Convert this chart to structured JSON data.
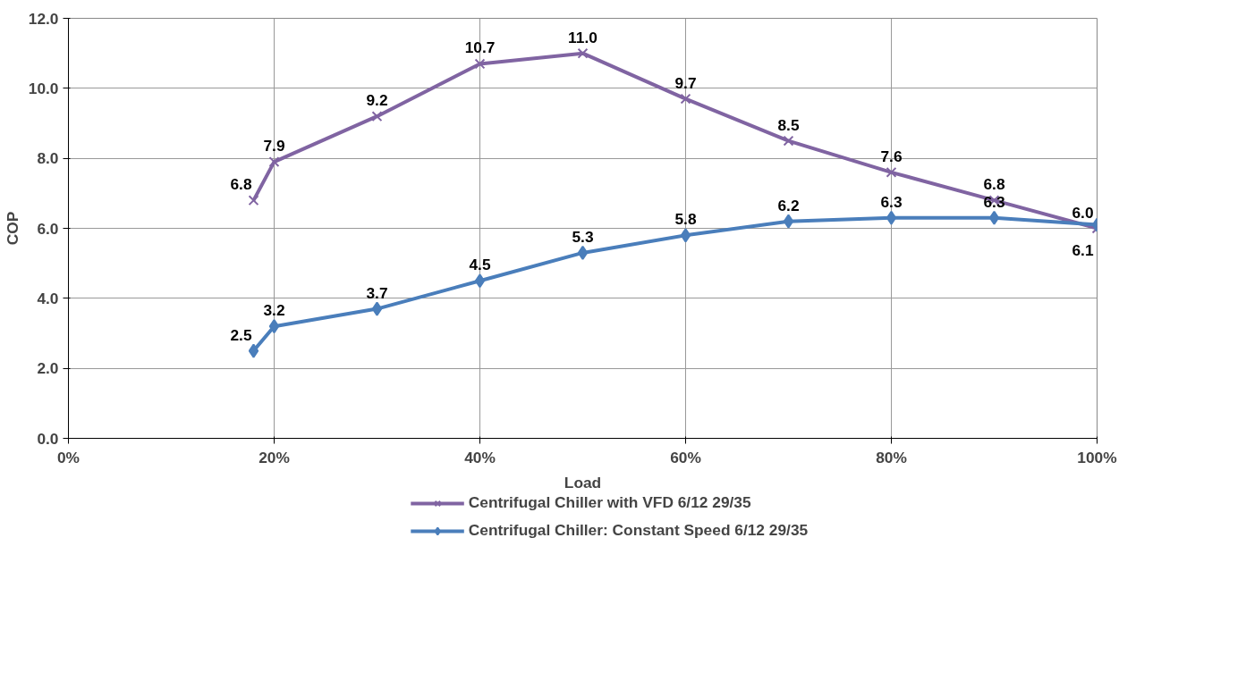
{
  "chart_data": {
    "type": "line",
    "xlabel": "Load",
    "ylabel": "COP",
    "x": [
      0.18,
      0.2,
      0.3,
      0.4,
      0.5,
      0.6,
      0.7,
      0.8,
      0.9,
      1.0
    ],
    "series": [
      {
        "name": "Centrifugal Chiller with VFD 6/12 29/35",
        "color": "#8064a2",
        "marker": "cross",
        "values": [
          6.8,
          7.9,
          9.2,
          10.7,
          11.0,
          9.7,
          8.5,
          7.6,
          6.8,
          6.0
        ],
        "value_labels": [
          "6.8",
          "7.9",
          "9.2",
          "10.7",
          "11.0",
          "9.7",
          "8.5",
          "7.6",
          "6.8",
          "6.0"
        ]
      },
      {
        "name": "Centrifugal Chiller: Constant Speed 6/12 29/35",
        "color": "#4a7ebb",
        "marker": "diamond",
        "values": [
          2.5,
          3.2,
          3.7,
          4.5,
          5.3,
          5.8,
          6.2,
          6.3,
          6.3,
          6.1
        ],
        "value_labels": [
          "2.5",
          "3.2",
          "3.7",
          "4.5",
          "5.3",
          "5.8",
          "6.2",
          "6.3",
          "6.3",
          "6.1"
        ]
      }
    ],
    "xlim": [
      0,
      1
    ],
    "xticks": [
      {
        "value": 0,
        "label": "0%"
      },
      {
        "value": 0.2,
        "label": "20%"
      },
      {
        "value": 0.4,
        "label": "40%"
      },
      {
        "value": 0.6,
        "label": "60%"
      },
      {
        "value": 0.8,
        "label": "80%"
      },
      {
        "value": 1.0,
        "label": "100%"
      }
    ],
    "ylim": [
      0,
      12
    ],
    "yticks": [
      {
        "value": 0,
        "label": "0.0"
      },
      {
        "value": 2,
        "label": "2.0"
      },
      {
        "value": 4,
        "label": "4.0"
      },
      {
        "value": 6,
        "label": "6.0"
      },
      {
        "value": 8,
        "label": "8.0"
      },
      {
        "value": 10,
        "label": "10.0"
      },
      {
        "value": 12,
        "label": "12.0"
      }
    ],
    "grid": true,
    "legend": "bottom",
    "line_style": "solid"
  }
}
